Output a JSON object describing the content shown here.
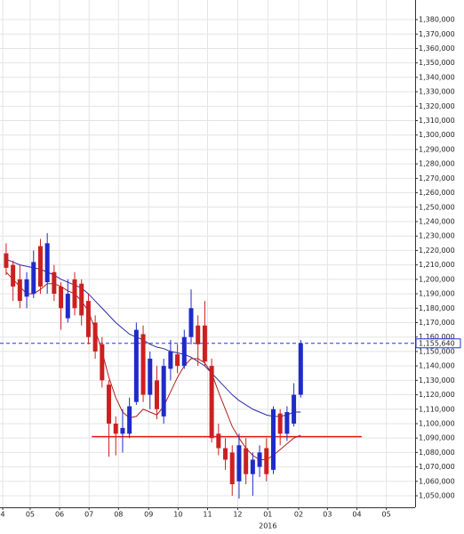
{
  "chart_data": {
    "type": "candlestick",
    "open": [
      1218000,
      1210000,
      1200000,
      1188000,
      1190000,
      1223000,
      1198000,
      1205000,
      1195000,
      1173000,
      1200000,
      1197000,
      1185000,
      1170000,
      1155000,
      1127000,
      1100000,
      1093000,
      1093000,
      1115000,
      1162000,
      1120000,
      1130000,
      1105000,
      1138000,
      1148000,
      1140000,
      1160000,
      1168000,
      1168000,
      1140000,
      1093000,
      1083000,
      1080000,
      1060000,
      1083000,
      1065000,
      1070000,
      1083000,
      1068000,
      1107000,
      1093000,
      1100000,
      1120000
    ],
    "high": [
      1225000,
      1213000,
      1210000,
      1205000,
      1220000,
      1228000,
      1232000,
      1210000,
      1198000,
      1200000,
      1205000,
      1200000,
      1190000,
      1175000,
      1160000,
      1130000,
      1105000,
      1110000,
      1118000,
      1170000,
      1168000,
      1150000,
      1140000,
      1145000,
      1158000,
      1155000,
      1165000,
      1193000,
      1175000,
      1185000,
      1145000,
      1100000,
      1090000,
      1085000,
      1093000,
      1090000,
      1080000,
      1085000,
      1090000,
      1112000,
      1110000,
      1112000,
      1128000,
      1158000
    ],
    "low": [
      1203000,
      1185000,
      1180000,
      1180000,
      1187000,
      1190000,
      1190000,
      1185000,
      1165000,
      1170000,
      1175000,
      1168000,
      1155000,
      1145000,
      1125000,
      1077000,
      1078000,
      1080000,
      1090000,
      1113000,
      1115000,
      1110000,
      1103000,
      1100000,
      1130000,
      1135000,
      1138000,
      1155000,
      1140000,
      1140000,
      1087000,
      1078000,
      1068000,
      1050000,
      1048000,
      1058000,
      1050000,
      1063000,
      1060000,
      1065000,
      1085000,
      1088000,
      1098000,
      1118000
    ],
    "close": [
      1208000,
      1195000,
      1185000,
      1200000,
      1212000,
      1195000,
      1225000,
      1190000,
      1180000,
      1190000,
      1180000,
      1175000,
      1160000,
      1150000,
      1130000,
      1100000,
      1093000,
      1097000,
      1112000,
      1165000,
      1120000,
      1145000,
      1110000,
      1140000,
      1150000,
      1140000,
      1160000,
      1180000,
      1155000,
      1143000,
      1090000,
      1083000,
      1075000,
      1058000,
      1085000,
      1065000,
      1075000,
      1080000,
      1065000,
      1110000,
      1093000,
      1108000,
      1120000,
      1155640
    ],
    "up_color": "#1f2bc8",
    "down_color": "#cc2020",
    "lines": [
      {
        "color": "#2a2aa8",
        "values": [
          1214000,
          1212000,
          1210000,
          1209000,
          1208000,
          1207000,
          1205000,
          1203000,
          1200000,
          1198000,
          1196000,
          1194000,
          1190000,
          1185000,
          1180000,
          1175000,
          1170000,
          1166000,
          1162000,
          1160000,
          1158000,
          1155000,
          1153000,
          1152000,
          1150000,
          1149000,
          1148000,
          1146000,
          1143000,
          1140000,
          1135000,
          1130000,
          1125000,
          1120000,
          1116000,
          1113000,
          1110000,
          1108000,
          1106000,
          1105000,
          1105000,
          1106000,
          1108000,
          1108000
        ]
      },
      {
        "color": "#b02020",
        "values": [
          1205000,
          1200000,
          1195000,
          1190000,
          1190000,
          1193000,
          1197000,
          1197000,
          1195000,
          1192000,
          1190000,
          1185000,
          1178000,
          1165000,
          1150000,
          1132000,
          1118000,
          1108000,
          1104000,
          1105000,
          1110000,
          1108000,
          1106000,
          1112000,
          1122000,
          1132000,
          1140000,
          1145000,
          1145000,
          1142000,
          1135000,
          1122000,
          1110000,
          1098000,
          1090000,
          1083000,
          1078000,
          1075000,
          1075000,
          1078000,
          1082000,
          1086000,
          1090000,
          1092000
        ]
      }
    ],
    "hline": {
      "value": 1091000,
      "color": "#e01818",
      "x": [
        12.5,
        51.9
      ]
    },
    "last_price": {
      "value": 1155640,
      "label": "1,155,640",
      "color": "#2233dd"
    },
    "xlim": [
      -0.9,
      59.7
    ],
    "ylim": [
      1042000,
      1393600
    ],
    "xlabel": "2016",
    "xticks": [
      {
        "value": -0.5,
        "label": "4"
      },
      {
        "value": 3.5,
        "label": "05"
      },
      {
        "value": 7.8,
        "label": "06"
      },
      {
        "value": 12.1,
        "label": "07"
      },
      {
        "value": 16.4,
        "label": "08"
      },
      {
        "value": 20.8,
        "label": "09"
      },
      {
        "value": 25.1,
        "label": "10"
      },
      {
        "value": 29.4,
        "label": "11"
      },
      {
        "value": 33.8,
        "label": "12"
      },
      {
        "value": 38.2,
        "label": "01"
      },
      {
        "value": 42.7,
        "label": "02"
      },
      {
        "value": 46.9,
        "label": "03"
      },
      {
        "value": 51.2,
        "label": "04"
      },
      {
        "value": 55.5,
        "label": "05"
      }
    ],
    "yticks": [
      {
        "value": 1050000,
        "label": "1,050,000"
      },
      {
        "value": 1060000,
        "label": "1,060,000"
      },
      {
        "value": 1070000,
        "label": "1,070,000"
      },
      {
        "value": 1080000,
        "label": "1,080,000"
      },
      {
        "value": 1090000,
        "label": "1,090,000"
      },
      {
        "value": 1100000,
        "label": "1,100,000"
      },
      {
        "value": 1110000,
        "label": "1,110,000"
      },
      {
        "value": 1120000,
        "label": "1,120,000"
      },
      {
        "value": 1130000,
        "label": "1,130,000"
      },
      {
        "value": 1140000,
        "label": "1,140,000"
      },
      {
        "value": 1150000,
        "label": "1,150,000"
      },
      {
        "value": 1160000,
        "label": "1,160,000"
      },
      {
        "value": 1170000,
        "label": "1,170,000"
      },
      {
        "value": 1180000,
        "label": "1,180,000"
      },
      {
        "value": 1190000,
        "label": "1,190,000"
      },
      {
        "value": 1200000,
        "label": "1,200,000"
      },
      {
        "value": 1210000,
        "label": "1,210,000"
      },
      {
        "value": 1220000,
        "label": "1,220,000"
      },
      {
        "value": 1230000,
        "label": "1,230,000"
      },
      {
        "value": 1240000,
        "label": "1,240,000"
      },
      {
        "value": 1250000,
        "label": "1,250,000"
      },
      {
        "value": 1260000,
        "label": "1,260,000"
      },
      {
        "value": 1270000,
        "label": "1,270,000"
      },
      {
        "value": 1280000,
        "label": "1,280,000"
      },
      {
        "value": 1290000,
        "label": "1,290,000"
      },
      {
        "value": 1300000,
        "label": "1,300,000"
      },
      {
        "value": 1310000,
        "label": "1,310,000"
      },
      {
        "value": 1320000,
        "label": "1,320,000"
      },
      {
        "value": 1330000,
        "label": "1,330,000"
      },
      {
        "value": 1340000,
        "label": "1,340,000"
      },
      {
        "value": 1350000,
        "label": "1,350,000"
      },
      {
        "value": 1360000,
        "label": "1,360,000"
      },
      {
        "value": 1370000,
        "label": "1,370,000"
      },
      {
        "value": 1380000,
        "label": "1,380,000"
      }
    ],
    "grid": true
  }
}
